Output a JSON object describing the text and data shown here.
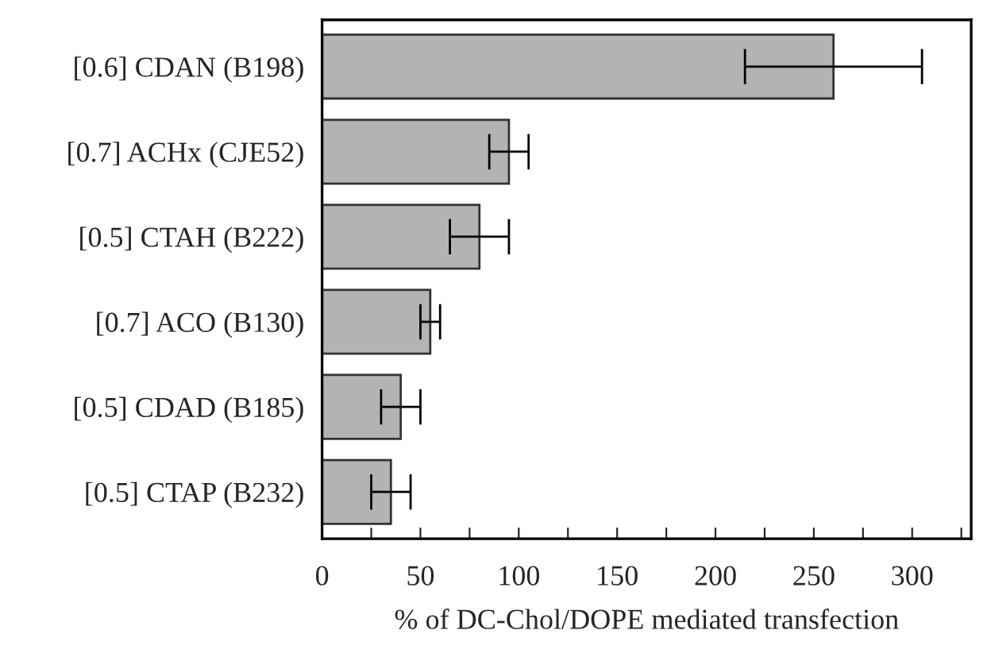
{
  "chart_data": {
    "type": "bar",
    "orientation": "horizontal",
    "xlabel": "% of DC-Chol/DOPE mediated transfection",
    "categories": [
      "[0.6] CDAN (B198)",
      "[0.7] ACHx (CJE52)",
      "[0.5] CTAH (B222)",
      "[0.7] ACO (B130)",
      "[0.5] CDAD (B185)",
      "[0.5] CTAP (B232)"
    ],
    "values": [
      260,
      95,
      80,
      55,
      40,
      35
    ],
    "errors": [
      45,
      10,
      15,
      5,
      10,
      10
    ],
    "color": "#b3b3b3",
    "xlim": [
      0,
      330
    ],
    "xticks": [
      0,
      {
        "value": 25,
        "label": null
      },
      50,
      {
        "value": 75,
        "label": null
      },
      100,
      {
        "value": 125,
        "label": null
      },
      150,
      {
        "value": 175,
        "label": null
      },
      200,
      {
        "value": 225,
        "label": null
      },
      250,
      {
        "value": 275,
        "label": null
      },
      300,
      {
        "value": 325,
        "label": null
      }
    ],
    "grid": false,
    "legend": false
  }
}
